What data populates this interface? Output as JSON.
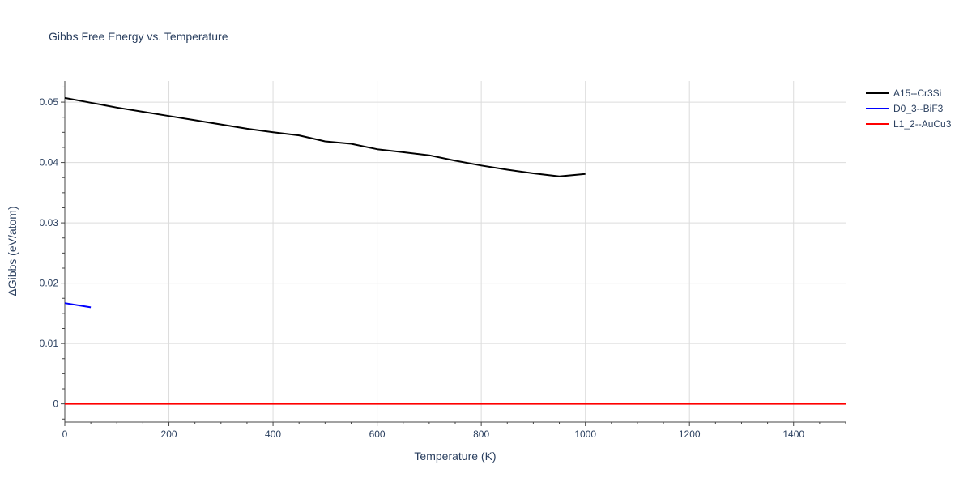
{
  "chart_data": {
    "type": "line",
    "title": "Gibbs Free Energy vs. Temperature",
    "xlabel": "Temperature (K)",
    "ylabel": "ΔGibbs (eV/atom)",
    "xlim": [
      0,
      1500
    ],
    "ylim": [
      -0.003,
      0.0535
    ],
    "xticks": [
      0,
      200,
      400,
      600,
      800,
      1000,
      1200,
      1400
    ],
    "yticks": [
      0,
      0.01,
      0.02,
      0.03,
      0.04,
      0.05
    ],
    "ytick_labels": [
      "0",
      "0.01",
      "0.02",
      "0.03",
      "0.04",
      "0.05"
    ],
    "grid": true,
    "legend_position": "top-right outside",
    "series": [
      {
        "name": "A15--Cr3Si",
        "color": "#000000",
        "x": [
          0,
          50,
          100,
          150,
          200,
          250,
          300,
          350,
          400,
          450,
          500,
          550,
          600,
          650,
          700,
          750,
          800,
          850,
          900,
          950,
          1000
        ],
        "y": [
          0.0507,
          0.0499,
          0.0491,
          0.0484,
          0.0477,
          0.047,
          0.0463,
          0.0456,
          0.045,
          0.0445,
          0.0435,
          0.0431,
          0.0422,
          0.0417,
          0.0412,
          0.0403,
          0.0395,
          0.0388,
          0.0382,
          0.0377,
          0.0381
        ]
      },
      {
        "name": "D0_3--BiF3",
        "color": "#0000ff",
        "x": [
          0,
          50
        ],
        "y": [
          0.0167,
          0.016
        ]
      },
      {
        "name": "L1_2--AuCu3",
        "color": "#ff0000",
        "x": [
          0,
          1500
        ],
        "y": [
          0,
          0
        ]
      }
    ]
  }
}
